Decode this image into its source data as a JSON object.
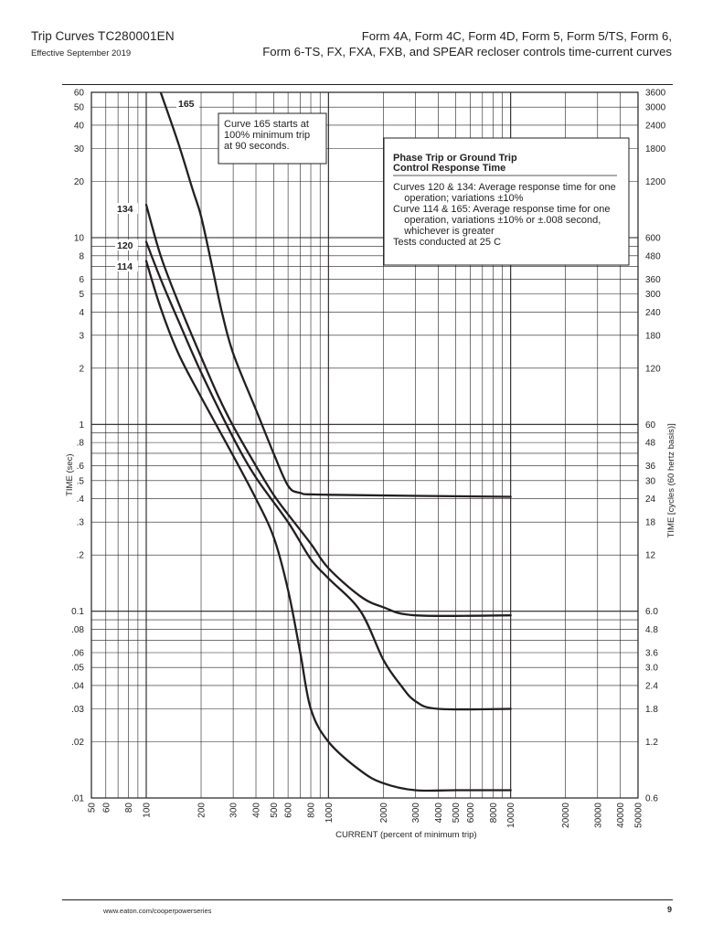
{
  "header": {
    "series": "Trip Curves",
    "doc_number": "TC280001EN",
    "effective": "Effective September 2019",
    "title_line1": "Form 4A, Form 4C, Form 4D, Form 5, Form 5/TS, Form 6,",
    "title_line2": "Form 6-TS, FX, FXA, FXB, and SPEAR recloser controls time-current curves"
  },
  "footer": {
    "url": "www.eaton.com/cooperpowerseries",
    "page": "9"
  },
  "chart_data": {
    "type": "line",
    "x_scale": "log",
    "y_scale": "log",
    "xlim": [
      50,
      50000
    ],
    "ylim": [
      0.01,
      60
    ],
    "xlabel": "CURRENT (percent of minimum trip)",
    "ylabel": "TIME (sec)",
    "y2label": "TIME [cycles (60 hertz basis)]",
    "grid": true,
    "x_ticks": [
      {
        "v": 50,
        "l": "50"
      },
      {
        "v": 60,
        "l": "60"
      },
      {
        "v": 80,
        "l": "80"
      },
      {
        "v": 100,
        "l": "100"
      },
      {
        "v": 200,
        "l": "200"
      },
      {
        "v": 300,
        "l": "300"
      },
      {
        "v": 400,
        "l": "400"
      },
      {
        "v": 500,
        "l": "500"
      },
      {
        "v": 600,
        "l": "600"
      },
      {
        "v": 800,
        "l": "800"
      },
      {
        "v": 1000,
        "l": "1000"
      },
      {
        "v": 2000,
        "l": "2000"
      },
      {
        "v": 3000,
        "l": "3000"
      },
      {
        "v": 4000,
        "l": "4000"
      },
      {
        "v": 5000,
        "l": "5000"
      },
      {
        "v": 6000,
        "l": "6000"
      },
      {
        "v": 8000,
        "l": "8000"
      },
      {
        "v": 10000,
        "l": "10000"
      },
      {
        "v": 20000,
        "l": "20000"
      },
      {
        "v": 30000,
        "l": "30000"
      },
      {
        "v": 40000,
        "l": "40000"
      },
      {
        "v": 50000,
        "l": "50000"
      }
    ],
    "y_ticks": [
      {
        "v": 60,
        "l": "60"
      },
      {
        "v": 50,
        "l": "50"
      },
      {
        "v": 40,
        "l": "40"
      },
      {
        "v": 30,
        "l": "30"
      },
      {
        "v": 20,
        "l": "20"
      },
      {
        "v": 10,
        "l": "10"
      },
      {
        "v": 8,
        "l": "8"
      },
      {
        "v": 6,
        "l": "6"
      },
      {
        "v": 5,
        "l": "5"
      },
      {
        "v": 4,
        "l": "4"
      },
      {
        "v": 3,
        "l": "3"
      },
      {
        "v": 2,
        "l": "2"
      },
      {
        "v": 1,
        "l": "1"
      },
      {
        "v": 0.8,
        "l": ".8"
      },
      {
        "v": 0.6,
        "l": ".6"
      },
      {
        "v": 0.5,
        "l": ".5"
      },
      {
        "v": 0.4,
        "l": ".4"
      },
      {
        "v": 0.3,
        "l": ".3"
      },
      {
        "v": 0.2,
        "l": ".2"
      },
      {
        "v": 0.1,
        "l": "0.1"
      },
      {
        "v": 0.08,
        "l": ".08"
      },
      {
        "v": 0.06,
        "l": ".06"
      },
      {
        "v": 0.05,
        "l": ".05"
      },
      {
        "v": 0.04,
        "l": ".04"
      },
      {
        "v": 0.03,
        "l": ".03"
      },
      {
        "v": 0.02,
        "l": ".02"
      },
      {
        "v": 0.01,
        "l": ".01"
      }
    ],
    "y2_ticks": [
      {
        "v": 60,
        "l": "3600"
      },
      {
        "v": 50,
        "l": "3000"
      },
      {
        "v": 40,
        "l": "2400"
      },
      {
        "v": 30,
        "l": "1800"
      },
      {
        "v": 20,
        "l": "1200"
      },
      {
        "v": 10,
        "l": "600"
      },
      {
        "v": 8,
        "l": "480"
      },
      {
        "v": 6,
        "l": "360"
      },
      {
        "v": 5,
        "l": "300"
      },
      {
        "v": 4,
        "l": "240"
      },
      {
        "v": 3,
        "l": "180"
      },
      {
        "v": 2,
        "l": "120"
      },
      {
        "v": 1,
        "l": "60"
      },
      {
        "v": 0.8,
        "l": "48"
      },
      {
        "v": 0.6,
        "l": "36"
      },
      {
        "v": 0.5,
        "l": "30"
      },
      {
        "v": 0.4,
        "l": "24"
      },
      {
        "v": 0.3,
        "l": "18"
      },
      {
        "v": 0.2,
        "l": "12"
      },
      {
        "v": 0.1,
        "l": "6.0"
      },
      {
        "v": 0.08,
        "l": "4.8"
      },
      {
        "v": 0.06,
        "l": "3.6"
      },
      {
        "v": 0.05,
        "l": "3.0"
      },
      {
        "v": 0.04,
        "l": "2.4"
      },
      {
        "v": 0.03,
        "l": "1.8"
      },
      {
        "v": 0.02,
        "l": "1.2"
      },
      {
        "v": 0.01,
        "l": "0.6"
      }
    ],
    "series": [
      {
        "name": "165",
        "points": [
          [
            120,
            60
          ],
          [
            150,
            32
          ],
          [
            180,
            18
          ],
          [
            200,
            13
          ],
          [
            230,
            7
          ],
          [
            260,
            4
          ],
          [
            300,
            2.4
          ],
          [
            400,
            1.2
          ],
          [
            500,
            0.7
          ],
          [
            600,
            0.47
          ],
          [
            700,
            0.43
          ],
          [
            1000,
            0.42
          ],
          [
            10000,
            0.41
          ]
        ]
      },
      {
        "name": "134",
        "points": [
          [
            100,
            15
          ],
          [
            120,
            8
          ],
          [
            150,
            4.5
          ],
          [
            200,
            2.3
          ],
          [
            250,
            1.4
          ],
          [
            300,
            0.98
          ],
          [
            400,
            0.6
          ],
          [
            500,
            0.42
          ],
          [
            600,
            0.33
          ],
          [
            800,
            0.23
          ],
          [
            1000,
            0.17
          ],
          [
            1500,
            0.12
          ],
          [
            2000,
            0.105
          ],
          [
            3000,
            0.095
          ],
          [
            10000,
            0.095
          ]
        ]
      },
      {
        "name": "120",
        "points": [
          [
            100,
            9.5
          ],
          [
            120,
            6
          ],
          [
            150,
            3.6
          ],
          [
            200,
            1.9
          ],
          [
            300,
            0.85
          ],
          [
            400,
            0.52
          ],
          [
            600,
            0.3
          ],
          [
            800,
            0.19
          ],
          [
            1000,
            0.15
          ],
          [
            1500,
            0.1
          ],
          [
            2000,
            0.055
          ],
          [
            2500,
            0.04
          ],
          [
            3000,
            0.033
          ],
          [
            4000,
            0.03
          ],
          [
            10000,
            0.03
          ]
        ]
      },
      {
        "name": "114",
        "points": [
          [
            100,
            7.5
          ],
          [
            120,
            4.2
          ],
          [
            150,
            2.4
          ],
          [
            200,
            1.4
          ],
          [
            300,
            0.68
          ],
          [
            400,
            0.4
          ],
          [
            500,
            0.25
          ],
          [
            600,
            0.13
          ],
          [
            700,
            0.06
          ],
          [
            800,
            0.03
          ],
          [
            1000,
            0.02
          ],
          [
            1500,
            0.014
          ],
          [
            2000,
            0.012
          ],
          [
            3000,
            0.011
          ],
          [
            5000,
            0.011
          ],
          [
            10000,
            0.011
          ]
        ]
      }
    ],
    "annotations": {
      "curve165_note": [
        "Curve 165 starts at",
        "100% minimum trip",
        "at 90 seconds."
      ],
      "legend_title": [
        "Phase Trip or Ground Trip",
        "Control Response Time"
      ],
      "legend_lines": [
        "Curves 120 & 134: Average response time for one",
        "    operation; variations ±10%",
        "Curve 114 & 165: Average response time for one",
        "    operation, variations ±10% or ±.008 second,",
        "    whichever is greater",
        "Tests conducted at 25 C"
      ]
    }
  }
}
